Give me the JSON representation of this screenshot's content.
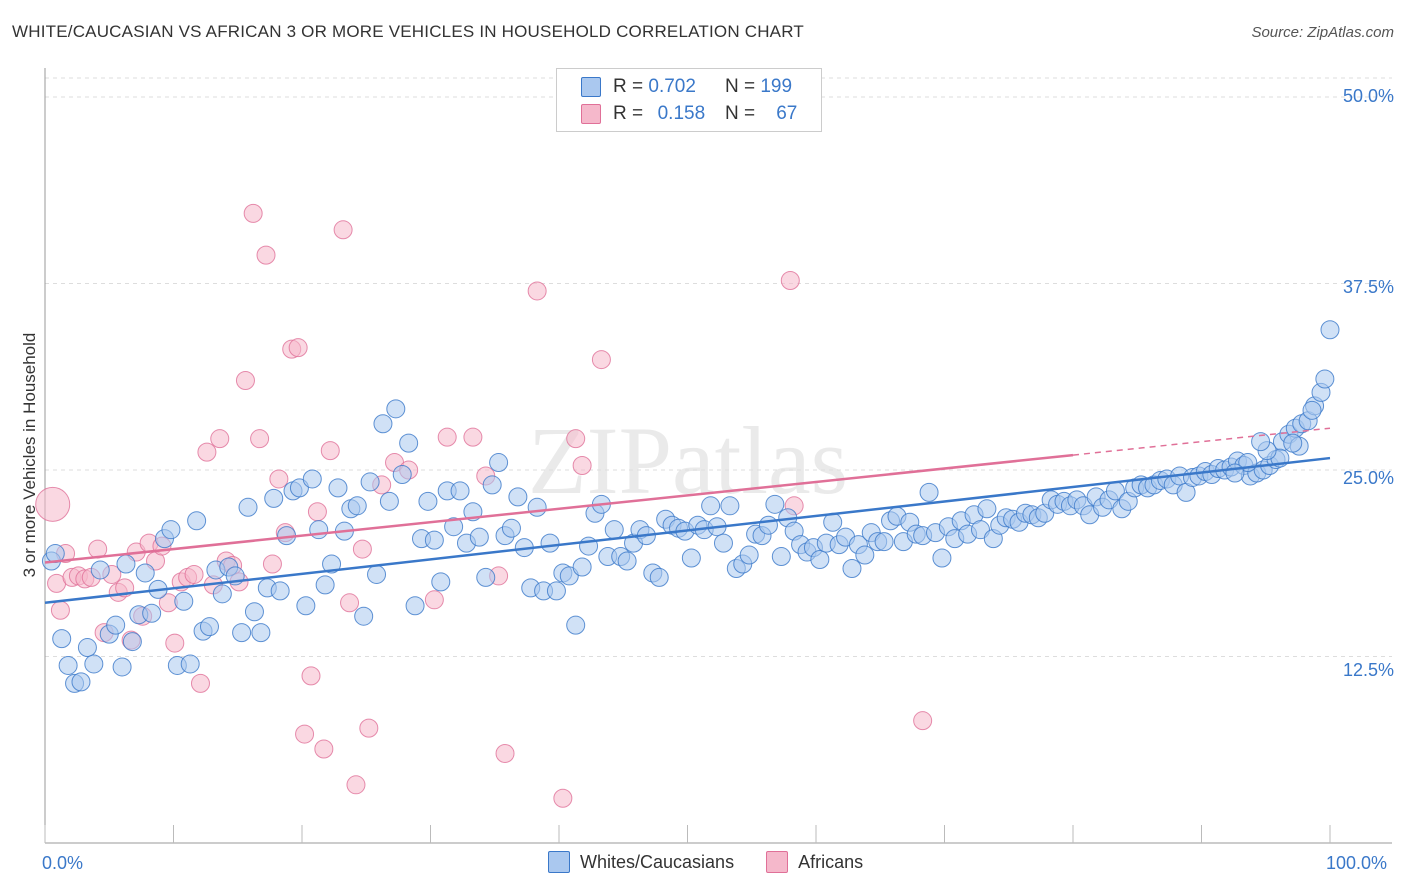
{
  "title": "WHITE/CAUCASIAN VS AFRICAN 3 OR MORE VEHICLES IN HOUSEHOLD CORRELATION CHART",
  "source": "Source: ZipAtlas.com",
  "watermark": "ZIPatlas",
  "colors": {
    "blue": "#3a78c9",
    "blue_fill": "#aac8ef",
    "pink": "#e07098",
    "pink_fill": "#f5b8cb"
  },
  "legend": [
    {
      "r_label": "R =",
      "r_value": "0.702",
      "n_label": "N =",
      "n_value": "199"
    },
    {
      "r_label": "R =",
      "r_value": "0.158",
      "n_label": "N =",
      "n_value": "67"
    }
  ],
  "bottom_legend": [
    "Whites/Caucasians",
    "Africans"
  ],
  "chart_data": {
    "type": "scatter",
    "title": "WHITE/CAUCASIAN VS AFRICAN 3 OR MORE VEHICLES IN HOUSEHOLD CORRELATION CHART",
    "xlabel": "",
    "ylabel": "3 or more Vehicles in Household",
    "xlim": [
      0,
      100
    ],
    "ylim": [
      0,
      52
    ],
    "x_tick_labels": [
      "0.0%",
      "100.0%"
    ],
    "y_ticks": [
      12.5,
      25.0,
      37.5,
      50.0
    ],
    "y_tick_labels": [
      "12.5%",
      "25.0%",
      "37.5%",
      "50.0%"
    ],
    "series": [
      {
        "name": "Whites/Caucasians",
        "r": 0.702,
        "n": 199,
        "trend": {
          "x": [
            0,
            100
          ],
          "y": [
            16.1,
            25.8
          ],
          "dashed_from": null
        },
        "points": [
          [
            0.5,
            18.9
          ],
          [
            0.8,
            19.4
          ],
          [
            1.3,
            13.7
          ],
          [
            1.8,
            11.9
          ],
          [
            2.3,
            10.7
          ],
          [
            2.8,
            10.8
          ],
          [
            3.3,
            13.1
          ],
          [
            3.8,
            12.0
          ],
          [
            4.3,
            18.3
          ],
          [
            5.0,
            14.0
          ],
          [
            5.5,
            14.6
          ],
          [
            6.0,
            11.8
          ],
          [
            6.3,
            18.7
          ],
          [
            6.8,
            13.5
          ],
          [
            7.3,
            15.3
          ],
          [
            7.8,
            18.1
          ],
          [
            8.3,
            15.4
          ],
          [
            8.8,
            17.0
          ],
          [
            9.3,
            20.4
          ],
          [
            9.8,
            21.0
          ],
          [
            10.3,
            11.9
          ],
          [
            10.8,
            16.2
          ],
          [
            11.3,
            12.0
          ],
          [
            11.8,
            21.6
          ],
          [
            12.3,
            14.2
          ],
          [
            12.8,
            14.5
          ],
          [
            13.3,
            18.3
          ],
          [
            13.8,
            16.7
          ],
          [
            14.3,
            18.5
          ],
          [
            14.8,
            17.9
          ],
          [
            15.3,
            14.1
          ],
          [
            15.8,
            22.5
          ],
          [
            16.3,
            15.5
          ],
          [
            16.8,
            14.1
          ],
          [
            17.3,
            17.1
          ],
          [
            17.8,
            23.1
          ],
          [
            18.3,
            16.9
          ],
          [
            18.8,
            20.6
          ],
          [
            19.3,
            23.6
          ],
          [
            19.8,
            23.8
          ],
          [
            20.3,
            15.9
          ],
          [
            20.8,
            24.4
          ],
          [
            21.3,
            21.0
          ],
          [
            21.8,
            17.3
          ],
          [
            22.3,
            18.7
          ],
          [
            22.8,
            23.8
          ],
          [
            23.3,
            20.9
          ],
          [
            23.8,
            22.4
          ],
          [
            24.3,
            22.6
          ],
          [
            24.8,
            15.2
          ],
          [
            25.3,
            24.2
          ],
          [
            25.8,
            18.0
          ],
          [
            26.3,
            28.1
          ],
          [
            26.8,
            22.9
          ],
          [
            27.3,
            29.1
          ],
          [
            27.8,
            24.7
          ],
          [
            28.3,
            26.8
          ],
          [
            28.8,
            15.9
          ],
          [
            29.3,
            20.4
          ],
          [
            29.8,
            22.9
          ],
          [
            30.3,
            20.3
          ],
          [
            30.8,
            17.5
          ],
          [
            31.3,
            23.6
          ],
          [
            31.8,
            21.2
          ],
          [
            32.3,
            23.6
          ],
          [
            32.8,
            20.1
          ],
          [
            33.3,
            22.2
          ],
          [
            33.8,
            20.5
          ],
          [
            34.3,
            17.8
          ],
          [
            34.8,
            24.0
          ],
          [
            35.3,
            25.5
          ],
          [
            35.8,
            20.6
          ],
          [
            36.3,
            21.1
          ],
          [
            36.8,
            23.2
          ],
          [
            37.3,
            19.8
          ],
          [
            37.8,
            17.1
          ],
          [
            38.3,
            22.5
          ],
          [
            38.8,
            16.9
          ],
          [
            39.3,
            20.1
          ],
          [
            39.8,
            16.9
          ],
          [
            40.3,
            18.1
          ],
          [
            40.8,
            17.9
          ],
          [
            41.3,
            14.6
          ],
          [
            41.8,
            18.5
          ],
          [
            42.3,
            19.9
          ],
          [
            42.8,
            22.1
          ],
          [
            43.3,
            22.7
          ],
          [
            43.8,
            19.2
          ],
          [
            44.3,
            21.0
          ],
          [
            44.8,
            19.2
          ],
          [
            45.3,
            18.9
          ],
          [
            45.8,
            20.1
          ],
          [
            46.3,
            21.0
          ],
          [
            46.8,
            20.6
          ],
          [
            47.3,
            18.1
          ],
          [
            47.8,
            17.8
          ],
          [
            48.3,
            21.7
          ],
          [
            48.8,
            21.3
          ],
          [
            49.3,
            21.1
          ],
          [
            49.8,
            20.9
          ],
          [
            50.3,
            19.1
          ],
          [
            50.8,
            21.3
          ],
          [
            51.3,
            21.0
          ],
          [
            51.8,
            22.6
          ],
          [
            52.3,
            21.2
          ],
          [
            52.8,
            20.1
          ],
          [
            53.3,
            22.6
          ],
          [
            53.8,
            18.4
          ],
          [
            54.3,
            18.7
          ],
          [
            54.8,
            19.3
          ],
          [
            55.3,
            20.7
          ],
          [
            55.8,
            20.6
          ],
          [
            56.3,
            21.3
          ],
          [
            56.8,
            22.7
          ],
          [
            57.3,
            19.2
          ],
          [
            57.8,
            21.8
          ],
          [
            58.3,
            20.9
          ],
          [
            58.8,
            20.0
          ],
          [
            59.3,
            19.5
          ],
          [
            59.8,
            19.8
          ],
          [
            60.3,
            19.0
          ],
          [
            60.8,
            20.1
          ],
          [
            61.3,
            21.5
          ],
          [
            61.8,
            20.0
          ],
          [
            62.3,
            20.5
          ],
          [
            62.8,
            18.4
          ],
          [
            63.3,
            20.0
          ],
          [
            63.8,
            19.3
          ],
          [
            64.3,
            20.8
          ],
          [
            64.8,
            20.2
          ],
          [
            65.3,
            20.2
          ],
          [
            65.8,
            21.6
          ],
          [
            66.3,
            21.9
          ],
          [
            66.8,
            20.2
          ],
          [
            67.3,
            21.5
          ],
          [
            67.8,
            20.7
          ],
          [
            68.3,
            20.6
          ],
          [
            68.8,
            23.5
          ],
          [
            69.3,
            20.8
          ],
          [
            69.8,
            19.1
          ],
          [
            70.3,
            21.2
          ],
          [
            70.8,
            20.4
          ],
          [
            71.3,
            21.6
          ],
          [
            71.8,
            20.7
          ],
          [
            72.3,
            22.0
          ],
          [
            72.8,
            21.0
          ],
          [
            73.3,
            22.4
          ],
          [
            73.8,
            20.4
          ],
          [
            74.3,
            21.3
          ],
          [
            74.8,
            21.8
          ],
          [
            75.3,
            21.7
          ],
          [
            75.8,
            21.5
          ],
          [
            76.3,
            22.1
          ],
          [
            76.8,
            22.0
          ],
          [
            77.3,
            21.8
          ],
          [
            77.8,
            22.1
          ],
          [
            78.3,
            23.0
          ],
          [
            78.8,
            22.7
          ],
          [
            79.3,
            22.9
          ],
          [
            79.8,
            22.6
          ],
          [
            80.3,
            23.0
          ],
          [
            80.8,
            22.6
          ],
          [
            81.3,
            22.0
          ],
          [
            81.8,
            23.2
          ],
          [
            82.3,
            22.5
          ],
          [
            82.8,
            23.0
          ],
          [
            83.3,
            23.6
          ],
          [
            83.8,
            22.4
          ],
          [
            84.3,
            22.9
          ],
          [
            84.8,
            23.8
          ],
          [
            85.3,
            24.0
          ],
          [
            85.8,
            23.8
          ],
          [
            86.3,
            24.0
          ],
          [
            86.8,
            24.3
          ],
          [
            87.3,
            24.4
          ],
          [
            87.8,
            24.0
          ],
          [
            88.3,
            24.6
          ],
          [
            88.8,
            23.5
          ],
          [
            89.3,
            24.5
          ],
          [
            89.8,
            24.6
          ],
          [
            90.3,
            24.9
          ],
          [
            90.8,
            24.7
          ],
          [
            91.3,
            25.1
          ],
          [
            91.8,
            25.0
          ],
          [
            92.3,
            25.2
          ],
          [
            92.8,
            25.6
          ],
          [
            93.3,
            25.3
          ],
          [
            93.8,
            24.6
          ],
          [
            94.3,
            24.8
          ],
          [
            94.8,
            25.0
          ],
          [
            95.3,
            25.3
          ],
          [
            95.8,
            25.7
          ],
          [
            96.3,
            26.9
          ],
          [
            96.8,
            27.4
          ],
          [
            97.3,
            27.8
          ],
          [
            97.8,
            28.1
          ],
          [
            98.3,
            28.3
          ],
          [
            98.8,
            29.3
          ],
          [
            99.3,
            30.2
          ],
          [
            100.0,
            34.4
          ],
          [
            99.6,
            31.1
          ],
          [
            98.6,
            29.0
          ],
          [
            97.6,
            26.6
          ],
          [
            97.1,
            26.8
          ],
          [
            96.1,
            25.8
          ],
          [
            95.1,
            26.3
          ],
          [
            94.6,
            26.9
          ],
          [
            93.6,
            25.5
          ],
          [
            92.6,
            24.8
          ]
        ]
      },
      {
        "name": "Africans",
        "r": 0.158,
        "n": 67,
        "trend": {
          "x": [
            0,
            100
          ],
          "y": [
            18.8,
            27.8
          ],
          "dashed_from": 80
        },
        "points": [
          [
            0.6,
            22.7
          ],
          [
            0.9,
            17.4
          ],
          [
            1.2,
            15.6
          ],
          [
            1.6,
            19.4
          ],
          [
            2.1,
            17.8
          ],
          [
            2.6,
            17.9
          ],
          [
            3.1,
            17.7
          ],
          [
            3.6,
            17.8
          ],
          [
            4.1,
            19.7
          ],
          [
            4.6,
            14.1
          ],
          [
            5.2,
            18.0
          ],
          [
            5.7,
            16.8
          ],
          [
            6.2,
            17.1
          ],
          [
            6.7,
            13.6
          ],
          [
            7.1,
            19.5
          ],
          [
            7.6,
            15.2
          ],
          [
            8.1,
            20.1
          ],
          [
            8.6,
            18.9
          ],
          [
            9.1,
            19.9
          ],
          [
            9.6,
            16.1
          ],
          [
            10.1,
            13.4
          ],
          [
            10.6,
            17.5
          ],
          [
            11.1,
            17.8
          ],
          [
            11.6,
            18.0
          ],
          [
            12.1,
            10.7
          ],
          [
            12.6,
            26.2
          ],
          [
            13.1,
            17.3
          ],
          [
            13.6,
            27.1
          ],
          [
            14.1,
            18.9
          ],
          [
            14.6,
            18.6
          ],
          [
            15.1,
            17.5
          ],
          [
            15.6,
            31.0
          ],
          [
            16.2,
            42.2
          ],
          [
            16.7,
            27.1
          ],
          [
            17.2,
            39.4
          ],
          [
            17.7,
            18.7
          ],
          [
            18.2,
            24.4
          ],
          [
            18.7,
            20.8
          ],
          [
            19.2,
            33.1
          ],
          [
            19.7,
            33.2
          ],
          [
            20.2,
            7.3
          ],
          [
            20.7,
            11.2
          ],
          [
            21.2,
            22.2
          ],
          [
            21.7,
            6.3
          ],
          [
            22.2,
            26.3
          ],
          [
            23.2,
            41.1
          ],
          [
            23.7,
            16.1
          ],
          [
            24.2,
            3.9
          ],
          [
            24.7,
            19.7
          ],
          [
            25.2,
            7.7
          ],
          [
            26.2,
            24.0
          ],
          [
            27.2,
            25.5
          ],
          [
            28.3,
            25.0
          ],
          [
            30.3,
            16.3
          ],
          [
            31.3,
            27.2
          ],
          [
            33.3,
            27.2
          ],
          [
            34.3,
            24.6
          ],
          [
            35.3,
            17.9
          ],
          [
            35.8,
            6.0
          ],
          [
            38.3,
            37.0
          ],
          [
            40.3,
            3.0
          ],
          [
            41.3,
            27.1
          ],
          [
            41.8,
            25.3
          ],
          [
            43.3,
            32.4
          ],
          [
            58.3,
            22.6
          ],
          [
            58.0,
            37.7
          ],
          [
            68.3,
            8.2
          ]
        ]
      }
    ]
  }
}
